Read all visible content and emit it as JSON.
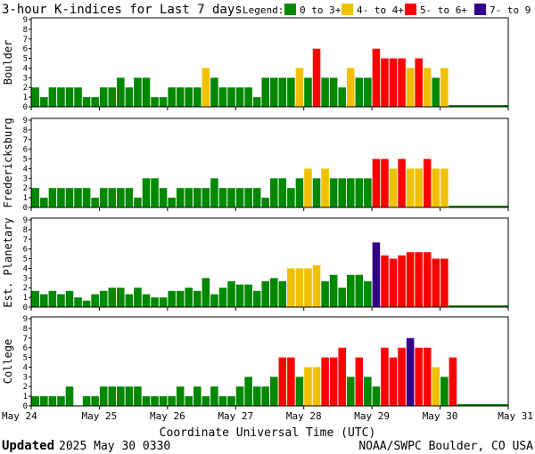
{
  "page": {
    "title": "3-hour K-indices for Last 7 days",
    "legend_label": "Legend:",
    "legend": [
      {
        "label": "0 to 3+",
        "color": "#008800"
      },
      {
        "label": "4- to 4+",
        "color": "#f0c000"
      },
      {
        "label": "5- to 6+",
        "color": "#ff0000"
      },
      {
        "label": "7- to 9",
        "color": "#330088"
      }
    ],
    "xlabel": "Coordinate Universal Time (UTC)",
    "footer_left_bold": "Updated",
    "footer_left_rest": "2025 May 30 0330",
    "footer_right": "NOAA/SWPC Boulder, CO USA"
  },
  "chart_data": [
    {
      "type": "bar",
      "station": "Boulder",
      "ylim": [
        0,
        9
      ],
      "yticks": [
        "0",
        "1",
        "2",
        "3",
        "4",
        "5",
        "6",
        "7",
        "8",
        "9"
      ],
      "xticks": [
        "May 24",
        "May 25",
        "May 26",
        "May 27",
        "May 28",
        "May 29",
        "May 30",
        "May 31"
      ],
      "values": [
        2,
        1,
        2,
        2,
        2,
        2,
        1,
        1,
        2,
        2,
        3,
        2,
        3,
        3,
        1,
        1,
        2,
        2,
        2,
        2,
        4,
        3,
        2,
        2,
        2,
        2,
        1,
        3,
        3,
        3,
        3,
        4,
        3,
        6,
        3,
        3,
        2,
        4,
        3,
        3,
        6,
        5,
        5,
        5,
        4,
        5,
        4,
        3,
        4
      ]
    },
    {
      "type": "bar",
      "station": "Fredericksburg",
      "ylim": [
        0,
        9
      ],
      "yticks": [
        "0",
        "1",
        "2",
        "3",
        "4",
        "5",
        "6",
        "7",
        "8",
        "9"
      ],
      "xticks": [
        "May 24",
        "May 25",
        "May 26",
        "May 27",
        "May 28",
        "May 29",
        "May 30",
        "May 31"
      ],
      "values": [
        2,
        1,
        2,
        2,
        2,
        2,
        2,
        1,
        2,
        2,
        2,
        2,
        1,
        3,
        3,
        2,
        1,
        2,
        2,
        2,
        2,
        3,
        2,
        2,
        2,
        2,
        2,
        1,
        3,
        3,
        2,
        3,
        4,
        3,
        4,
        3,
        3,
        3,
        3,
        3,
        5,
        5,
        4,
        5,
        4,
        4,
        5,
        4,
        4
      ]
    },
    {
      "type": "bar",
      "station": "Est. Planetary",
      "ylim": [
        0,
        9
      ],
      "yticks": [
        "0",
        "1",
        "2",
        "3",
        "4",
        "5",
        "6",
        "7",
        "8",
        "9"
      ],
      "xticks": [
        "May 24",
        "May 25",
        "May 26",
        "May 27",
        "May 28",
        "May 29",
        "May 30",
        "May 31"
      ],
      "values": [
        1.67,
        1.33,
        1.67,
        1.33,
        1.67,
        1,
        0.67,
        1.33,
        1.67,
        2,
        2,
        1.33,
        2,
        1.33,
        1,
        1,
        1.67,
        1.67,
        2,
        1.67,
        3,
        1.33,
        2,
        2.67,
        2.33,
        2.33,
        1.67,
        2.67,
        3,
        2.67,
        4,
        4,
        4,
        4.33,
        2.67,
        3.33,
        2,
        3.33,
        3.33,
        2.67,
        6.67,
        5.33,
        5,
        5.33,
        5.67,
        5.67,
        5.67,
        5,
        5
      ]
    },
    {
      "type": "bar",
      "station": "College",
      "ylim": [
        0,
        9
      ],
      "yticks": [
        "0",
        "1",
        "2",
        "3",
        "4",
        "5",
        "6",
        "7",
        "8",
        "9"
      ],
      "xticks": [
        "May 24",
        "May 25",
        "May 26",
        "May 27",
        "May 28",
        "May 29",
        "May 30",
        "May 31"
      ],
      "values": [
        1,
        1,
        1,
        1,
        2,
        0,
        1,
        1,
        2,
        2,
        2,
        2,
        2,
        1,
        1,
        1,
        1,
        2,
        1,
        2,
        1,
        2,
        1,
        1,
        2,
        3,
        2,
        2,
        3,
        5,
        5,
        3,
        4,
        4,
        5,
        5,
        6,
        3,
        5,
        3,
        2,
        6,
        5,
        6,
        7,
        6,
        6,
        4,
        3,
        5
      ]
    }
  ]
}
